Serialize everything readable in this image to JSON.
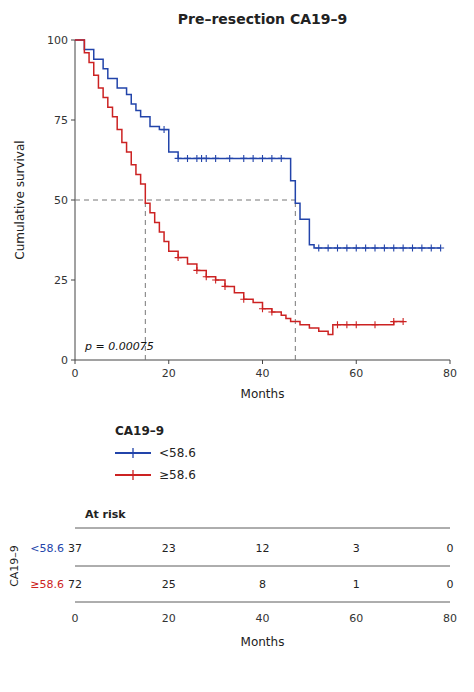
{
  "chart_data": {
    "type": "step",
    "title": "Pre–resection CA19–9",
    "xlabel": "Months",
    "ylabel": "Cumulative survival",
    "xlim": [
      0,
      80
    ],
    "ylim": [
      0,
      100
    ],
    "xticks": [
      0,
      20,
      40,
      60,
      80
    ],
    "yticks": [
      0,
      25,
      50,
      75,
      100
    ],
    "grid": false,
    "legend": "bottom",
    "legend_title": "CA19–9",
    "annotation": "p = 0.00075",
    "median_y": 50,
    "at_risk_title": "At risk",
    "at_risk_times": [
      0,
      20,
      40,
      60,
      80
    ],
    "series": [
      {
        "name": "<58.6",
        "color": "#2244aa",
        "x": [
          0,
          2,
          4,
          6,
          7,
          9,
          11,
          12,
          13,
          14,
          16,
          18,
          20,
          22,
          46,
          47,
          48,
          50,
          51,
          78
        ],
        "values": [
          100,
          97,
          94,
          91,
          88,
          85,
          83,
          80,
          78,
          76,
          73,
          72,
          65,
          63,
          56,
          49,
          44,
          36,
          35,
          35
        ],
        "censor_x": [
          19,
          22,
          24,
          26,
          27,
          28,
          30,
          33,
          36,
          38,
          40,
          42,
          44,
          52,
          54,
          56,
          58,
          60,
          62,
          64,
          66,
          68,
          70,
          72,
          74,
          76,
          78
        ],
        "censor_values": [
          72,
          63,
          63,
          63,
          63,
          63,
          63,
          63,
          63,
          63,
          63,
          63,
          63,
          35,
          35,
          35,
          35,
          35,
          35,
          35,
          35,
          35,
          35,
          35,
          35,
          35,
          35
        ],
        "median": 47,
        "at_risk": [
          37,
          23,
          12,
          3,
          0
        ]
      },
      {
        "name": "≥58.6",
        "color": "#cc2222",
        "x": [
          0,
          2,
          3,
          4,
          5,
          6,
          7,
          8,
          9,
          10,
          11,
          12,
          13,
          14,
          15,
          16,
          17,
          18,
          19,
          20,
          22,
          24,
          26,
          28,
          30,
          32,
          34,
          36,
          38,
          40,
          42,
          44,
          45,
          46,
          48,
          50,
          52,
          54,
          55,
          57,
          60,
          62,
          64,
          66,
          68,
          70
        ],
        "values": [
          100,
          96,
          93,
          89,
          85,
          82,
          79,
          76,
          72,
          68,
          65,
          61,
          58,
          55,
          49,
          46,
          43,
          40,
          37,
          34,
          32,
          30,
          28,
          26,
          25,
          23,
          21,
          19,
          18,
          16,
          15,
          14,
          13,
          12,
          11,
          10,
          9,
          8,
          11,
          11,
          11,
          11,
          11,
          11,
          12,
          12
        ],
        "censor_x": [
          22,
          26,
          28,
          30,
          32,
          36,
          40,
          42,
          56,
          58,
          60,
          64,
          68,
          70
        ],
        "censor_values": [
          32,
          28,
          26,
          25,
          23,
          19,
          16,
          15,
          11,
          11,
          11,
          11,
          12,
          12
        ],
        "median": 15,
        "at_risk": [
          72,
          25,
          8,
          1,
          0
        ]
      }
    ]
  }
}
